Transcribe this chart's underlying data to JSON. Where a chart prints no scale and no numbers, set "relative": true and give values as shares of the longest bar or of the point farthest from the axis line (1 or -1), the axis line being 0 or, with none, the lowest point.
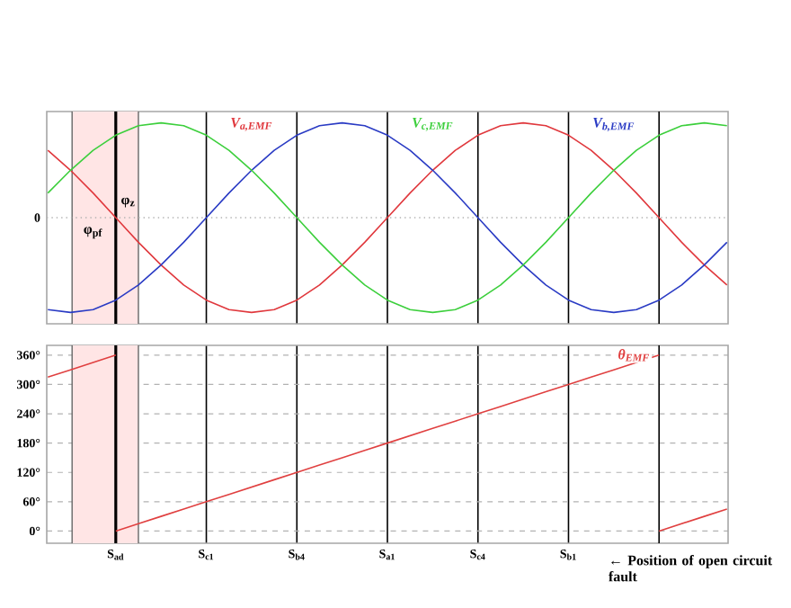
{
  "chart_data": [
    {
      "type": "line",
      "relative": true,
      "tick_labels": false,
      "grid": "x",
      "categories": [
        null,
        null,
        null,
        null,
        null,
        null,
        null,
        null,
        null,
        null,
        null,
        null,
        null,
        null,
        null,
        null,
        null,
        null,
        null,
        null,
        null,
        null,
        null,
        null,
        null,
        null,
        null,
        null,
        null,
        null,
        null
      ],
      "series": [
        {
          "name": "V$_{a,EMF}$",
          "color": "#e0383d",
          "values": [
            0.71,
            0.5,
            0.26,
            0,
            -0.26,
            -0.5,
            -0.71,
            -0.87,
            -0.97,
            -1,
            -0.97,
            -0.87,
            -0.71,
            -0.5,
            -0.26,
            0,
            0.26,
            0.5,
            0.71,
            0.87,
            0.97,
            1,
            0.97,
            0.87,
            0.71,
            0.5,
            0.26,
            0,
            -0.26,
            -0.5,
            -0.71
          ]
        },
        {
          "name": "V$_{b,EMF}$",
          "color": "#2a3bc4",
          "values": [
            -0.97,
            -1,
            -0.97,
            -0.87,
            -0.71,
            -0.5,
            -0.26,
            0,
            0.26,
            0.5,
            0.71,
            0.87,
            0.97,
            1,
            0.97,
            0.87,
            0.71,
            0.5,
            0.26,
            0,
            -0.26,
            -0.5,
            -0.71,
            -0.87,
            -0.97,
            -1,
            -0.97,
            -0.87,
            -0.71,
            -0.5,
            -0.26
          ]
        },
        {
          "name": "V$_{c,EMF}$",
          "color": "#3ccf3c",
          "values": [
            0.26,
            0.5,
            0.71,
            0.87,
            0.97,
            1,
            0.97,
            0.87,
            0.71,
            0.5,
            0.26,
            0,
            -0.26,
            -0.5,
            -0.71,
            -0.87,
            -0.97,
            -1,
            -0.97,
            -0.87,
            -0.71,
            -0.5,
            -0.26,
            0,
            0.26,
            0.5,
            0.71,
            0.87,
            0.97,
            1,
            0.97
          ]
        }
      ],
      "ref_lines": [
        {
          "axis": "y",
          "value": 0,
          "color": "#b2b2b2",
          "line_style": "dotted"
        }
      ],
      "annotations": [
        "0",
        "φ$_{pf}$",
        "φ$_{z}$"
      ]
    },
    {
      "type": "line",
      "ylim": [
        -25,
        380
      ],
      "grid": true,
      "categories": [
        null,
        null,
        null,
        "S$_{ad}$",
        null,
        null,
        null,
        "S$_{c1}$",
        null,
        null,
        null,
        "S$_{b4}$",
        null,
        null,
        null,
        "S$_{a1}$",
        null,
        null,
        null,
        "S$_{c4}$",
        null,
        null,
        null,
        "S$_{b1}$",
        null,
        null,
        null,
        null,
        null,
        null,
        null
      ],
      "yticks": [
        {
          "value": 0,
          "label": "0°"
        },
        {
          "value": 60,
          "label": "60°"
        },
        {
          "value": 120,
          "label": "120°"
        },
        {
          "value": 180,
          "label": "180°"
        },
        {
          "value": 240,
          "label": "240°"
        },
        {
          "value": 300,
          "label": "300°"
        },
        {
          "value": 360,
          "label": "360°"
        }
      ],
      "series": [
        {
          "color": "#e04040",
          "values": [
            315,
            330,
            345,
            360,
            null,
            null,
            null,
            null,
            null,
            null,
            null,
            null,
            null,
            null,
            null,
            null,
            null,
            null,
            null,
            null,
            null,
            null,
            null,
            null,
            null,
            null,
            null,
            null,
            null,
            null,
            null
          ]
        },
        {
          "name": "θ$_{EMF}$",
          "color": "#e04040",
          "values": [
            null,
            null,
            null,
            0,
            15,
            30,
            45,
            60,
            75,
            90,
            105,
            120,
            135,
            150,
            165,
            180,
            195,
            210,
            225,
            240,
            255,
            270,
            285,
            300,
            315,
            330,
            345,
            360,
            null,
            null,
            null
          ]
        },
        {
          "color": "#e04040",
          "values": [
            null,
            null,
            null,
            null,
            null,
            null,
            null,
            null,
            null,
            null,
            null,
            null,
            null,
            null,
            null,
            null,
            null,
            null,
            null,
            null,
            null,
            null,
            null,
            null,
            null,
            null,
            null,
            0,
            15,
            30,
            45
          ]
        }
      ],
      "annotations": [
        "← Position of open circuit fault"
      ]
    }
  ]
}
